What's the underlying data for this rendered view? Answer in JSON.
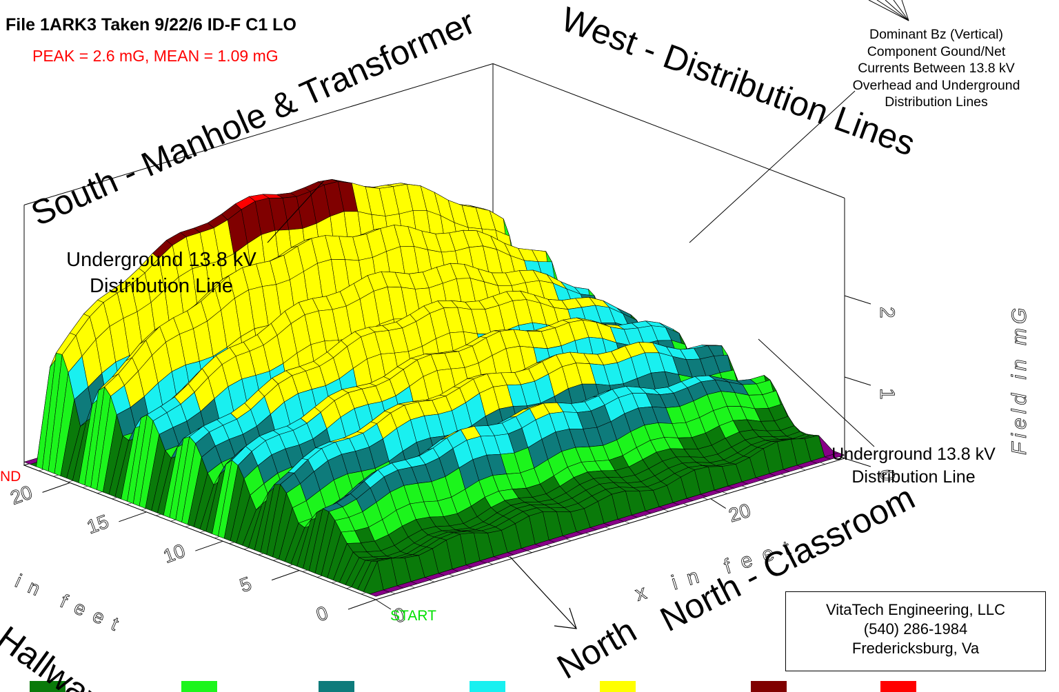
{
  "header": {
    "title": "File 1ARK3  Taken 9/22/6  ID-F C1 LO",
    "stats": "PEAK = 2.6 mG, MEAN = 1.09 mG"
  },
  "note": {
    "lines": [
      "Dominant Bz (Vertical)",
      "Component Gound/Net",
      "Currents Between 13.8 kV",
      "Overhead and Underground",
      "Distribution Lines"
    ]
  },
  "annotations": {
    "underground_left": [
      "Underground 13.8 kV",
      "Distribution Line"
    ],
    "underground_right": [
      "Underground 13.8 kV",
      "Distribution Line"
    ]
  },
  "orientation": {
    "south": "South - Manhole & Transformer",
    "west": "West - Distribution Lines",
    "north": "North - Classroom",
    "north_arrow": "North",
    "east": "- Hallway"
  },
  "markers": {
    "start": "START",
    "end": "ND"
  },
  "company": {
    "lines": [
      "VitaTech Engineering, LLC",
      "(540) 286-1984",
      "Fredericksburg, Va"
    ]
  },
  "chart_data": {
    "type": "surface",
    "title": "File 1ARK3  Taken 9/22/6  ID-F C1 LO",
    "zlabel": "Field in mG",
    "xlabel": "x in feet",
    "ylabel": "in feet",
    "z_ticks": [
      "0",
      "1",
      "2"
    ],
    "x_ticks": [
      "0",
      "20"
    ],
    "y_ticks": [
      "0",
      "5",
      "10",
      "15",
      "20"
    ],
    "zlim": [
      0,
      2.6
    ],
    "peak_mG": 2.6,
    "mean_mG": 1.09,
    "color_bands": [
      {
        "color": "#0a7a0a",
        "label": ""
      },
      {
        "color": "#1cf51c",
        "label": ""
      },
      {
        "color": "#0e7b7b",
        "label": ""
      },
      {
        "color": "#19f0f0",
        "label": ""
      },
      {
        "color": "#ffff00",
        "label": ""
      },
      {
        "color": "#800000",
        "label": ""
      },
      {
        "color": "#ff0000",
        "label": ""
      }
    ],
    "ridges": [
      {
        "name": "",
        "peak": 2.6
      },
      {
        "name": "",
        "peak": 2.2
      },
      {
        "name": "",
        "peak": 1.85
      },
      {
        "name": "",
        "peak": 1.65
      },
      {
        "name": "",
        "peak": 1.5
      },
      {
        "name": "",
        "peak": 1.4
      },
      {
        "name": "",
        "peak": 1.15
      }
    ]
  }
}
